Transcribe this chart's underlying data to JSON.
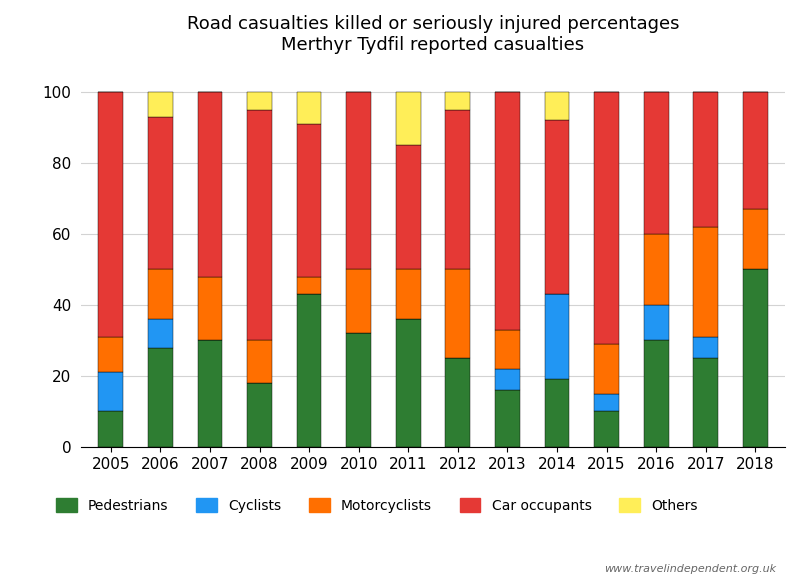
{
  "years": [
    2005,
    2006,
    2007,
    2008,
    2009,
    2010,
    2011,
    2012,
    2013,
    2014,
    2015,
    2016,
    2017,
    2018
  ],
  "pedestrians": [
    10,
    28,
    30,
    18,
    43,
    32,
    36,
    25,
    16,
    19,
    10,
    30,
    25,
    50
  ],
  "cyclists": [
    11,
    8,
    0,
    0,
    0,
    0,
    0,
    0,
    6,
    24,
    5,
    10,
    6,
    0
  ],
  "motorcyclists": [
    10,
    14,
    18,
    12,
    5,
    18,
    14,
    25,
    11,
    0,
    14,
    20,
    31,
    17
  ],
  "car_occupants": [
    69,
    43,
    52,
    65,
    43,
    50,
    35,
    45,
    67,
    49,
    71,
    40,
    38,
    33
  ],
  "others": [
    0,
    7,
    0,
    5,
    9,
    0,
    15,
    5,
    0,
    8,
    0,
    0,
    0,
    0
  ],
  "colors": {
    "pedestrians": "#2e7d32",
    "cyclists": "#2196f3",
    "motorcyclists": "#ff6f00",
    "car_occupants": "#e53935",
    "others": "#ffee58"
  },
  "title_line1": "Road casualties killed or seriously injured percentages",
  "title_line2": "Merthyr Tydfil reported casualties",
  "watermark": "www.travelindependent.org.uk",
  "legend_labels": [
    "Pedestrians",
    "Cyclists",
    "Motorcyclists",
    "Car occupants",
    "Others"
  ]
}
